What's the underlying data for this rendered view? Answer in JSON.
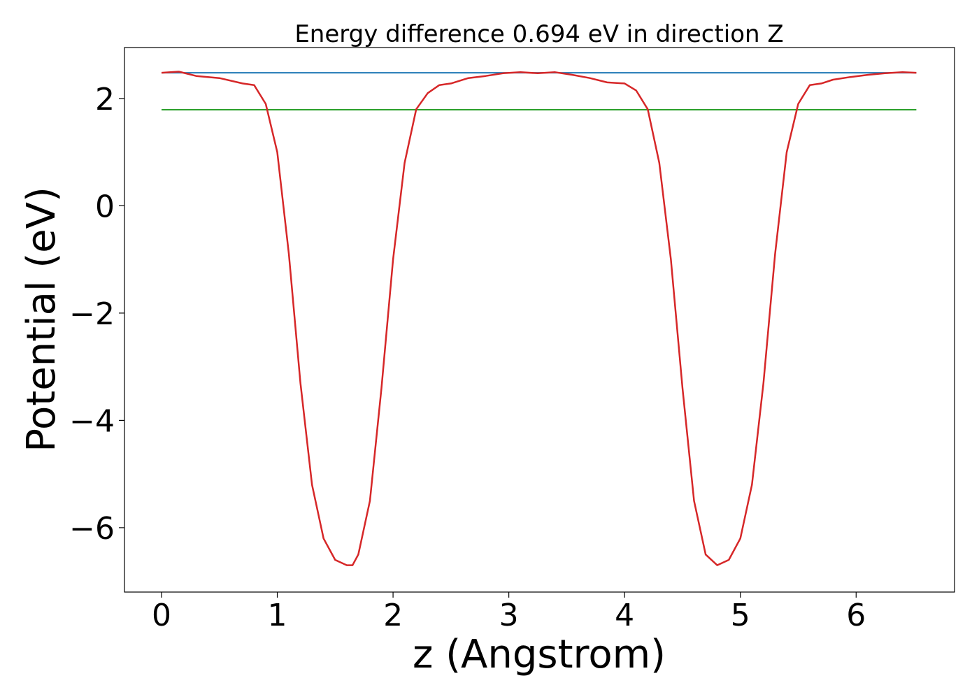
{
  "chart_data": {
    "type": "line",
    "title": "Energy difference 0.694 eV in direction Z",
    "xlabel": "z (Angstrom)",
    "ylabel": "Potential (eV)",
    "xlim": [
      -0.32,
      6.85
    ],
    "ylim": [
      -7.2,
      2.95
    ],
    "xticks": [
      0,
      1,
      2,
      3,
      4,
      5,
      6
    ],
    "yticks": [
      -6,
      -4,
      -2,
      0,
      2
    ],
    "grid": false,
    "series": [
      {
        "color": "#d62728",
        "x": [
          0,
          0.15,
          0.3,
          0.5,
          0.7,
          0.8,
          0.9,
          1.0,
          1.1,
          1.2,
          1.3,
          1.4,
          1.5,
          1.6,
          1.65,
          1.7,
          1.8,
          1.9,
          2.0,
          2.1,
          2.2,
          2.3,
          2.4,
          2.5,
          2.65,
          2.8,
          2.95,
          3.1,
          3.25,
          3.4,
          3.55,
          3.7,
          3.85,
          4.0,
          4.1,
          4.2,
          4.3,
          4.4,
          4.5,
          4.6,
          4.7,
          4.8,
          4.9,
          5.0,
          5.1,
          5.2,
          5.3,
          5.4,
          5.5,
          5.6,
          5.7,
          5.8,
          5.95,
          6.1,
          6.25,
          6.4,
          6.52
        ],
        "y": [
          2.48,
          2.5,
          2.42,
          2.38,
          2.28,
          2.25,
          1.9,
          1.0,
          -0.9,
          -3.3,
          -5.2,
          -6.2,
          -6.6,
          -6.7,
          -6.7,
          -6.5,
          -5.5,
          -3.4,
          -1.0,
          0.8,
          1.8,
          2.1,
          2.25,
          2.28,
          2.38,
          2.42,
          2.47,
          2.49,
          2.47,
          2.49,
          2.44,
          2.38,
          2.3,
          2.28,
          2.15,
          1.8,
          0.8,
          -1.0,
          -3.4,
          -5.5,
          -6.5,
          -6.7,
          -6.6,
          -6.2,
          -5.2,
          -3.3,
          -0.9,
          1.0,
          1.9,
          2.25,
          2.28,
          2.35,
          2.4,
          2.44,
          2.47,
          2.49,
          2.48
        ]
      },
      {
        "color": "#1f77b4",
        "x": [
          0,
          6.52
        ],
        "y": [
          2.48,
          2.48
        ]
      },
      {
        "color": "#2ca02c",
        "x": [
          0,
          6.52
        ],
        "y": [
          1.79,
          1.79
        ]
      }
    ]
  }
}
